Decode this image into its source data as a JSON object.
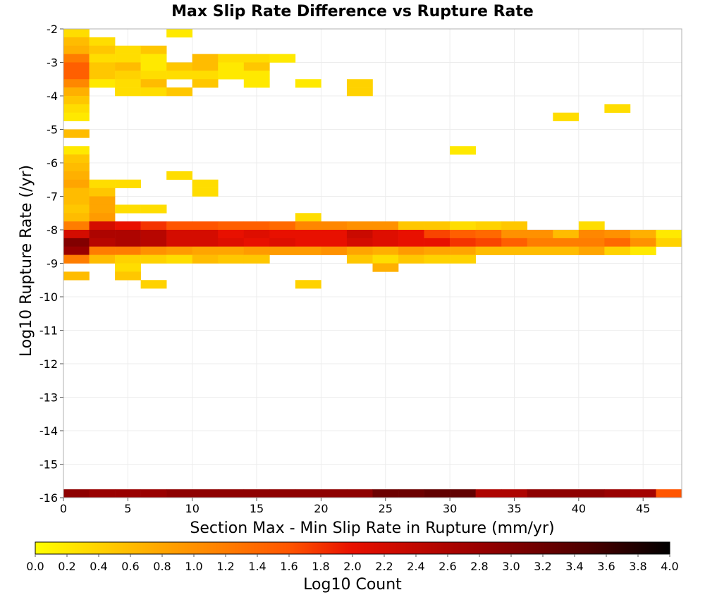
{
  "chart_data": {
    "type": "heatmap",
    "title": "Max Slip Rate Difference vs Rupture Rate",
    "xlabel": "Section Max - Min Slip Rate in Rupture (mm/yr)",
    "ylabel": "Log10 Rupture Rate (/yr)",
    "xlim": [
      0,
      48
    ],
    "ylim": [
      -16,
      -2
    ],
    "x_bin_width": 2,
    "y_bin_height": 0.25,
    "x_ticks": [
      "0",
      "5",
      "10",
      "15",
      "20",
      "25",
      "30",
      "35",
      "40",
      "45"
    ],
    "y_ticks": [
      "-2",
      "-3",
      "-4",
      "-5",
      "-6",
      "-7",
      "-8",
      "-9",
      "-10",
      "-11",
      "-12",
      "-13",
      "-14",
      "-15",
      "-16"
    ],
    "colorbar": {
      "label": "Log10 Count",
      "min": 0,
      "max": 4,
      "ticks": [
        "0.0",
        "0.2",
        "0.4",
        "0.6",
        "0.8",
        "1.0",
        "1.2",
        "1.4",
        "1.6",
        "1.8",
        "2.0",
        "2.2",
        "2.4",
        "2.6",
        "2.8",
        "3.0",
        "3.2",
        "3.4",
        "3.6",
        "3.8",
        "4.0"
      ],
      "stops": [
        {
          "v": 0.0,
          "color": "#ffff00"
        },
        {
          "v": 0.8,
          "color": "#ffa500"
        },
        {
          "v": 1.6,
          "color": "#ff5500"
        },
        {
          "v": 2.0,
          "color": "#e81000"
        },
        {
          "v": 2.8,
          "color": "#990000"
        },
        {
          "v": 3.5,
          "color": "#4a0000"
        },
        {
          "v": 4.0,
          "color": "#000000"
        }
      ]
    },
    "grid": true,
    "cells": [
      [
        0,
        -2.25,
        0.3
      ],
      [
        0,
        -2.5,
        0.6
      ],
      [
        0,
        -2.75,
        0.7
      ],
      [
        0,
        -3.0,
        1.2
      ],
      [
        0,
        -3.25,
        1.5
      ],
      [
        0,
        -3.5,
        1.5
      ],
      [
        0,
        -3.75,
        1.1
      ],
      [
        0,
        -4.0,
        0.7
      ],
      [
        0,
        -4.25,
        0.5
      ],
      [
        0,
        -4.5,
        0.3
      ],
      [
        0,
        -4.75,
        0.2
      ],
      [
        0,
        -5.25,
        0.6
      ],
      [
        0,
        -5.75,
        0.2
      ],
      [
        0,
        -6.0,
        0.5
      ],
      [
        0,
        -6.25,
        0.6
      ],
      [
        0,
        -6.5,
        0.7
      ],
      [
        0,
        -6.75,
        0.8
      ],
      [
        0,
        -7.0,
        0.6
      ],
      [
        0,
        -7.25,
        0.6
      ],
      [
        0,
        -7.5,
        0.5
      ],
      [
        0,
        -7.75,
        0.6
      ],
      [
        0,
        -8.0,
        1.2
      ],
      [
        0,
        -8.25,
        2.2
      ],
      [
        0,
        -8.5,
        3.0
      ],
      [
        0,
        -8.75,
        2.8
      ],
      [
        0,
        -9.0,
        1.2
      ],
      [
        0,
        -9.5,
        0.6
      ],
      [
        2,
        -2.5,
        0.3
      ],
      [
        2,
        -2.75,
        0.5
      ],
      [
        2,
        -3.0,
        0.3
      ],
      [
        2,
        -3.25,
        0.5
      ],
      [
        2,
        -3.5,
        0.5
      ],
      [
        2,
        -3.75,
        0.2
      ],
      [
        2,
        -6.75,
        0.3
      ],
      [
        2,
        -7.0,
        0.5
      ],
      [
        2,
        -7.25,
        0.8
      ],
      [
        2,
        -7.5,
        0.8
      ],
      [
        2,
        -7.75,
        0.9
      ],
      [
        2,
        -8.0,
        2.2
      ],
      [
        2,
        -8.25,
        2.6
      ],
      [
        2,
        -8.5,
        2.5
      ],
      [
        2,
        -8.75,
        1.2
      ],
      [
        2,
        -9.0,
        0.6
      ],
      [
        4,
        -2.75,
        0.3
      ],
      [
        4,
        -3.0,
        0.3
      ],
      [
        4,
        -3.25,
        0.6
      ],
      [
        4,
        -3.5,
        0.4
      ],
      [
        4,
        -3.75,
        0.3
      ],
      [
        4,
        -4.0,
        0.3
      ],
      [
        4,
        -6.75,
        0.3
      ],
      [
        4,
        -7.5,
        0.3
      ],
      [
        4,
        -8.0,
        2.0
      ],
      [
        4,
        -8.25,
        2.6
      ],
      [
        4,
        -8.5,
        2.6
      ],
      [
        4,
        -8.75,
        1.2
      ],
      [
        4,
        -9.0,
        0.4
      ],
      [
        4,
        -9.25,
        0.3
      ],
      [
        4,
        -9.5,
        0.5
      ],
      [
        6,
        -2.75,
        0.5
      ],
      [
        6,
        -3.0,
        0.2
      ],
      [
        6,
        -3.25,
        0.2
      ],
      [
        6,
        -3.5,
        0.3
      ],
      [
        6,
        -3.75,
        0.6
      ],
      [
        6,
        -4.0,
        0.3
      ],
      [
        6,
        -7.5,
        0.3
      ],
      [
        6,
        -8.0,
        1.8
      ],
      [
        6,
        -8.25,
        2.5
      ],
      [
        6,
        -8.5,
        2.5
      ],
      [
        6,
        -8.75,
        1.0
      ],
      [
        6,
        -9.0,
        0.4
      ],
      [
        6,
        -9.75,
        0.4
      ],
      [
        8,
        -2.25,
        0.2
      ],
      [
        8,
        -3.25,
        0.5
      ],
      [
        8,
        -3.5,
        0.3
      ],
      [
        8,
        -4.0,
        0.5
      ],
      [
        8,
        -6.5,
        0.3
      ],
      [
        8,
        -8.0,
        1.6
      ],
      [
        8,
        -8.25,
        2.2
      ],
      [
        8,
        -8.5,
        2.2
      ],
      [
        8,
        -8.75,
        0.9
      ],
      [
        8,
        -9.0,
        0.3
      ],
      [
        10,
        -3.0,
        0.6
      ],
      [
        10,
        -3.25,
        0.6
      ],
      [
        10,
        -3.5,
        0.3
      ],
      [
        10,
        -3.75,
        0.5
      ],
      [
        10,
        -6.75,
        0.3
      ],
      [
        10,
        -7.0,
        0.3
      ],
      [
        10,
        -8.0,
        1.6
      ],
      [
        10,
        -8.25,
        2.2
      ],
      [
        10,
        -8.5,
        2.2
      ],
      [
        10,
        -8.75,
        0.8
      ],
      [
        10,
        -9.0,
        0.6
      ],
      [
        12,
        -3.0,
        0.3
      ],
      [
        12,
        -3.25,
        0.2
      ],
      [
        12,
        -3.5,
        0.2
      ],
      [
        12,
        -8.0,
        1.5
      ],
      [
        12,
        -8.25,
        2.0
      ],
      [
        12,
        -8.5,
        2.1
      ],
      [
        12,
        -8.75,
        0.8
      ],
      [
        12,
        -9.0,
        0.5
      ],
      [
        14,
        -3.0,
        0.3
      ],
      [
        14,
        -3.25,
        0.5
      ],
      [
        14,
        -3.5,
        0.2
      ],
      [
        14,
        -3.75,
        0.2
      ],
      [
        14,
        -8.0,
        1.5
      ],
      [
        14,
        -8.25,
        2.1
      ],
      [
        14,
        -8.5,
        2.0
      ],
      [
        14,
        -8.75,
        0.9
      ],
      [
        14,
        -9.0,
        0.5
      ],
      [
        16,
        -3.0,
        0.2
      ],
      [
        16,
        -8.0,
        1.4
      ],
      [
        16,
        -8.25,
        2.0
      ],
      [
        16,
        -8.5,
        2.1
      ],
      [
        16,
        -8.75,
        0.9
      ],
      [
        18,
        -3.75,
        0.2
      ],
      [
        18,
        -7.75,
        0.3
      ],
      [
        18,
        -8.0,
        1.1
      ],
      [
        18,
        -8.25,
        2.0
      ],
      [
        18,
        -8.5,
        2.0
      ],
      [
        18,
        -8.75,
        0.9
      ],
      [
        18,
        -9.75,
        0.4
      ],
      [
        20,
        -8.0,
        1.1
      ],
      [
        20,
        -8.25,
        2.0
      ],
      [
        20,
        -8.5,
        2.0
      ],
      [
        20,
        -8.75,
        1.0
      ],
      [
        22,
        -3.75,
        0.4
      ],
      [
        22,
        -4.0,
        0.4
      ],
      [
        22,
        -8.0,
        1.0
      ],
      [
        22,
        -8.25,
        2.3
      ],
      [
        22,
        -8.5,
        2.2
      ],
      [
        22,
        -8.75,
        0.8
      ],
      [
        22,
        -9.0,
        0.5
      ],
      [
        24,
        -8.0,
        1.0
      ],
      [
        24,
        -8.25,
        2.1
      ],
      [
        24,
        -8.5,
        2.1
      ],
      [
        24,
        -8.75,
        0.7
      ],
      [
        24,
        -9.0,
        0.3
      ],
      [
        24,
        -9.25,
        0.7
      ],
      [
        26,
        -8.0,
        0.5
      ],
      [
        26,
        -8.25,
        2.0
      ],
      [
        26,
        -8.5,
        2.0
      ],
      [
        26,
        -8.75,
        0.9
      ],
      [
        26,
        -9.0,
        0.5
      ],
      [
        28,
        -8.0,
        0.5
      ],
      [
        28,
        -8.25,
        1.7
      ],
      [
        28,
        -8.5,
        2.0
      ],
      [
        28,
        -8.75,
        0.8
      ],
      [
        28,
        -9.0,
        0.4
      ],
      [
        30,
        -5.75,
        0.2
      ],
      [
        30,
        -8.0,
        0.3
      ],
      [
        30,
        -8.25,
        1.5
      ],
      [
        30,
        -8.5,
        1.8
      ],
      [
        30,
        -8.75,
        0.8
      ],
      [
        30,
        -9.0,
        0.4
      ],
      [
        32,
        -8.0,
        0.4
      ],
      [
        32,
        -8.25,
        1.4
      ],
      [
        32,
        -8.5,
        1.7
      ],
      [
        32,
        -8.75,
        0.6
      ],
      [
        34,
        -8.0,
        0.5
      ],
      [
        34,
        -8.25,
        1.0
      ],
      [
        34,
        -8.5,
        1.5
      ],
      [
        34,
        -8.75,
        0.6
      ],
      [
        36,
        -8.25,
        1.0
      ],
      [
        36,
        -8.5,
        1.2
      ],
      [
        36,
        -8.75,
        0.6
      ],
      [
        38,
        -4.75,
        0.3
      ],
      [
        38,
        -8.25,
        0.6
      ],
      [
        38,
        -8.5,
        1.2
      ],
      [
        38,
        -8.75,
        0.6
      ],
      [
        40,
        -8.0,
        0.3
      ],
      [
        40,
        -8.25,
        1.1
      ],
      [
        40,
        -8.5,
        1.2
      ],
      [
        40,
        -8.75,
        0.8
      ],
      [
        42,
        -4.5,
        0.3
      ],
      [
        42,
        -8.25,
        1.0
      ],
      [
        42,
        -8.5,
        1.4
      ],
      [
        42,
        -8.75,
        0.4
      ],
      [
        44,
        -8.25,
        0.7
      ],
      [
        44,
        -8.5,
        1.0
      ],
      [
        44,
        -8.75,
        0.2
      ],
      [
        46,
        -8.25,
        0.2
      ],
      [
        46,
        -8.5,
        0.4
      ],
      [
        0,
        -16.0,
        2.9
      ],
      [
        2,
        -16.0,
        2.8
      ],
      [
        4,
        -16.0,
        2.8
      ],
      [
        6,
        -16.0,
        2.8
      ],
      [
        8,
        -16.0,
        2.9
      ],
      [
        10,
        -16.0,
        2.9
      ],
      [
        12,
        -16.0,
        2.9
      ],
      [
        14,
        -16.0,
        2.9
      ],
      [
        16,
        -16.0,
        2.9
      ],
      [
        18,
        -16.0,
        2.9
      ],
      [
        20,
        -16.0,
        2.9
      ],
      [
        22,
        -16.0,
        2.9
      ],
      [
        24,
        -16.0,
        3.2
      ],
      [
        26,
        -16.0,
        3.2
      ],
      [
        28,
        -16.0,
        3.3
      ],
      [
        30,
        -16.0,
        3.3
      ],
      [
        32,
        -16.0,
        2.6
      ],
      [
        34,
        -16.0,
        2.6
      ],
      [
        36,
        -16.0,
        2.9
      ],
      [
        38,
        -16.0,
        2.9
      ],
      [
        40,
        -16.0,
        2.9
      ],
      [
        42,
        -16.0,
        2.8
      ],
      [
        44,
        -16.0,
        2.7
      ],
      [
        46,
        -16.0,
        1.6
      ]
    ]
  }
}
